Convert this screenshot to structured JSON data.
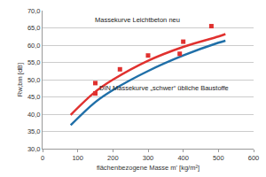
{
  "chart_data": {
    "type": "line",
    "x_label": "flächenbezogene Masse m' [kg/m²]",
    "y_label": "Rw,bm [dB]",
    "xlim": [
      0,
      600
    ],
    "xticks": [
      0,
      100,
      200,
      300,
      400,
      500,
      600
    ],
    "ylim": [
      30,
      70
    ],
    "yticks": [
      {
        "value": 30,
        "label": "30,0"
      },
      {
        "value": 35,
        "label": "35,0"
      },
      {
        "value": 40,
        "label": "40,0"
      },
      {
        "value": 45,
        "label": "45,0"
      },
      {
        "value": 50,
        "label": "50,0"
      },
      {
        "value": 55,
        "label": "55,0"
      },
      {
        "value": 60,
        "label": "60,0"
      },
      {
        "value": 65,
        "label": "65,0"
      },
      {
        "value": 70,
        "label": "70,0"
      }
    ],
    "grid": true,
    "series": [
      {
        "name": "Massekurve Leichtbeton neu",
        "color": "#e0312f",
        "type": "line",
        "x": [
          80,
          150,
          200,
          300,
          400,
          500,
          520
        ],
        "values": [
          39.8,
          46.5,
          50.0,
          55.5,
          59.5,
          62.5,
          63.2
        ]
      },
      {
        "name": "DIN Massekurve „schwer“ übliche Baustoffe",
        "color": "#1f6fa8",
        "type": "line",
        "x": [
          80,
          150,
          200,
          300,
          400,
          500,
          520
        ],
        "values": [
          36.8,
          43.5,
          47.0,
          52.5,
          57.0,
          60.7,
          61.3
        ]
      },
      {
        "color": "#e0312f",
        "type": "scatter",
        "marker": "square",
        "x": [
          150,
          150,
          220,
          300,
          390,
          400,
          480
        ],
        "values": [
          46.0,
          49.0,
          53.0,
          57.0,
          57.5,
          61.0,
          65.5
        ]
      }
    ]
  }
}
